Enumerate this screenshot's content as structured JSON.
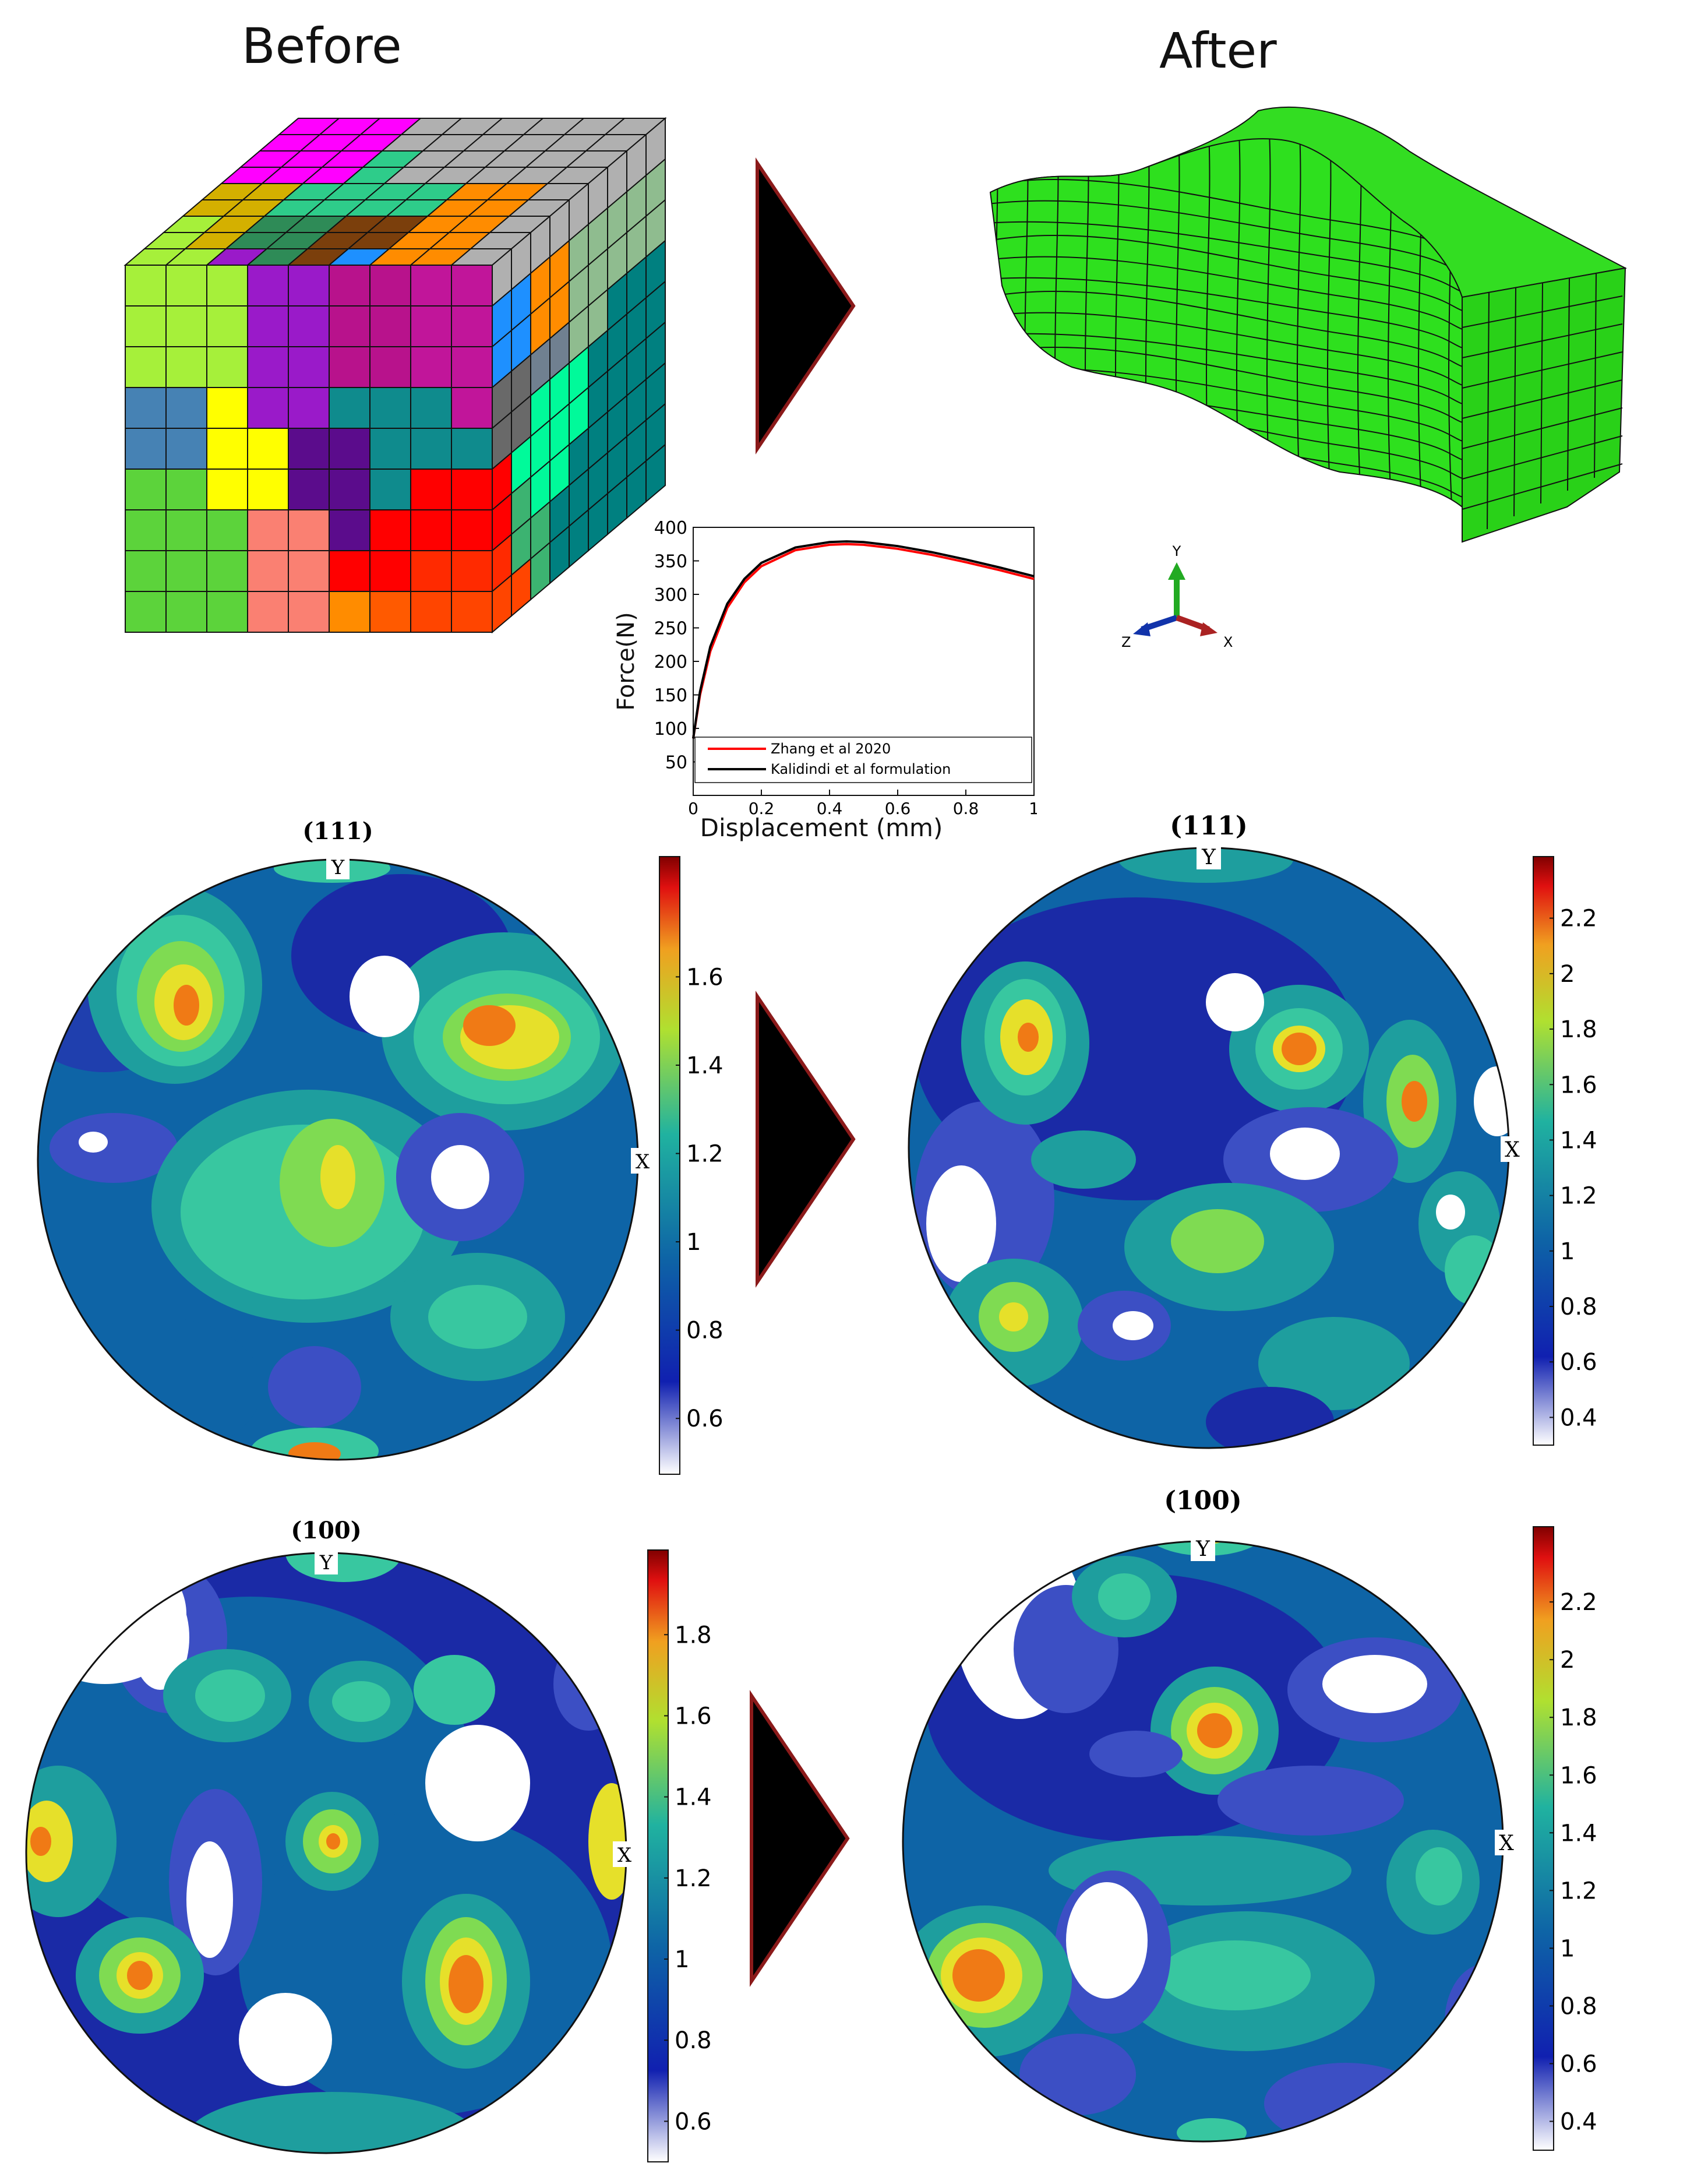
{
  "headings": {
    "before": "Before",
    "after": "After"
  },
  "axes_triad": {
    "x": "X",
    "y": "Y",
    "z": "Z"
  },
  "pole_figures": {
    "before_111": {
      "title": "(111)",
      "y_label": "Y",
      "x_label": "X",
      "colorbar_ticks": [
        "0.6",
        "0.8",
        "1",
        "1.2",
        "1.4",
        "1.6"
      ]
    },
    "after_111": {
      "title": "(111)",
      "y_label": "Y",
      "x_label": "X",
      "colorbar_ticks": [
        "0.4",
        "0.6",
        "0.8",
        "1",
        "1.2",
        "1.4",
        "1.6",
        "1.8",
        "2",
        "2.2"
      ]
    },
    "before_100": {
      "title": "(100)",
      "y_label": "Y",
      "x_label": "X",
      "colorbar_ticks": [
        "0.6",
        "0.8",
        "1",
        "1.2",
        "1.4",
        "1.6",
        "1.8"
      ]
    },
    "after_100": {
      "title": "(100)",
      "y_label": "Y",
      "x_label": "X",
      "colorbar_ticks": [
        "0.4",
        "0.6",
        "0.8",
        "1",
        "1.2",
        "1.4",
        "1.6",
        "1.8",
        "2",
        "2.2"
      ]
    }
  },
  "chart_data": {
    "type": "line",
    "xlabel": "Displacement (mm)",
    "ylabel": "Force(N)",
    "xlim": [
      0,
      1
    ],
    "ylim": [
      0,
      400
    ],
    "x_ticks": [
      "0",
      "0.2",
      "0.4",
      "0.6",
      "0.8",
      "1"
    ],
    "y_ticks": [
      "50",
      "100",
      "150",
      "200",
      "250",
      "300",
      "350",
      "400"
    ],
    "legend_position": "bottom",
    "series": [
      {
        "name": "Zhang et al 2020",
        "color": "#ff0000",
        "x": [
          0,
          0.02,
          0.05,
          0.1,
          0.15,
          0.2,
          0.3,
          0.4,
          0.45,
          0.5,
          0.6,
          0.7,
          0.8,
          0.9,
          1.0
        ],
        "y": [
          85,
          150,
          215,
          280,
          318,
          342,
          366,
          374,
          375,
          374,
          368,
          359,
          348,
          336,
          323
        ]
      },
      {
        "name": "Kalidindi et al formulation",
        "color": "#000000",
        "x": [
          0,
          0.02,
          0.05,
          0.1,
          0.15,
          0.2,
          0.3,
          0.4,
          0.45,
          0.5,
          0.6,
          0.7,
          0.8,
          0.9,
          1.0
        ],
        "y": [
          85,
          155,
          222,
          286,
          323,
          347,
          370,
          378,
          379,
          378,
          372,
          363,
          352,
          340,
          327
        ]
      }
    ]
  }
}
